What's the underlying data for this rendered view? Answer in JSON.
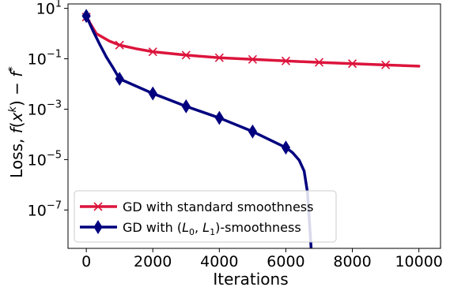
{
  "chart_data": {
    "type": "line",
    "title": "",
    "xlabel": "Iterations",
    "ylabel": "Loss, f(x^k) − f*",
    "ylabel_parts": {
      "prefix": "Loss, ",
      "f": "f",
      "open": "(",
      "x": "x",
      "k": "k",
      "close": ")",
      "minus": " − ",
      "f2": "f",
      "star": "*"
    },
    "x_scale": "linear",
    "y_scale": "log",
    "xlim": [
      -550,
      10650
    ],
    "ylim": [
      3e-09,
      15
    ],
    "x_ticks": [
      0,
      2000,
      4000,
      6000,
      8000,
      10000
    ],
    "x_tick_labels": [
      "0",
      "2000",
      "4000",
      "6000",
      "8000",
      "10000"
    ],
    "y_ticks": [
      10,
      0.1,
      0.001,
      1e-05,
      1e-07
    ],
    "y_tick_labels": [
      {
        "base": "10",
        "exp": "1"
      },
      {
        "base": "10",
        "exp": "−1"
      },
      {
        "base": "10",
        "exp": "−3"
      },
      {
        "base": "10",
        "exp": "−5"
      },
      {
        "base": "10",
        "exp": "−7"
      }
    ],
    "grid": false,
    "legend_position": "lower-left",
    "series": [
      {
        "name": "GD with standard smoothness",
        "color": "#dc143c",
        "marker": "x",
        "marker_x": [
          0,
          1000,
          2000,
          3000,
          4000,
          5000,
          6000,
          7000,
          8000,
          9000
        ],
        "marker_y": [
          4.5,
          0.35,
          0.19,
          0.14,
          0.11,
          0.095,
          0.082,
          0.072,
          0.064,
          0.057
        ],
        "x": [
          0,
          300,
          700,
          1000,
          1500,
          2000,
          3000,
          4000,
          5000,
          6000,
          7000,
          8000,
          9000,
          10000
        ],
        "y": [
          4.5,
          1.0,
          0.5,
          0.35,
          0.25,
          0.19,
          0.14,
          0.11,
          0.095,
          0.082,
          0.072,
          0.064,
          0.057,
          0.051
        ]
      },
      {
        "name": "GD with (L0, L1)-smoothness",
        "name_parts": {
          "prefix": "GD with (",
          "l0": "L",
          "l0_sub": "0",
          "comma": ", ",
          "l1": "L",
          "l1_sub": "1",
          "suffix": ")-smoothness"
        },
        "color": "#00007f",
        "marker": "diamond",
        "marker_x": [
          0,
          1000,
          2000,
          3000,
          4000,
          5000,
          6000
        ],
        "marker_y": [
          5.0,
          0.016,
          0.0042,
          0.0013,
          0.00045,
          0.00013,
          3e-05
        ],
        "x": [
          0,
          200,
          400,
          600,
          800,
          1000,
          2000,
          3000,
          4000,
          5000,
          6000,
          6200,
          6400,
          6550,
          6650,
          6720,
          6760
        ],
        "y": [
          5.0,
          1.3,
          0.38,
          0.12,
          0.045,
          0.016,
          0.0042,
          0.0013,
          0.00045,
          0.00013,
          3e-05,
          1.9e-05,
          9.5e-06,
          3.5e-06,
          5e-07,
          2e-08,
          3e-09
        ]
      }
    ]
  }
}
